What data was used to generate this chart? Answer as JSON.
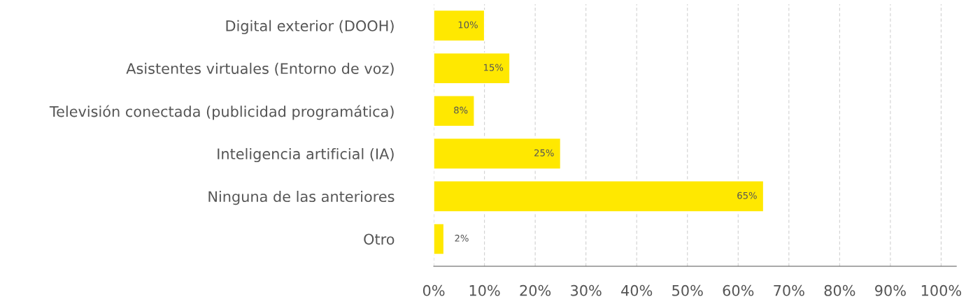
{
  "chart_data": {
    "type": "bar",
    "orientation": "horizontal",
    "categories": [
      "Digital exterior (DOOH)",
      "Asistentes virtuales (Entorno de voz)",
      "Televisión conectada (publicidad programática)",
      "Inteligencia artificial (IA)",
      "Ninguna de las anteriores",
      "Otro"
    ],
    "values": [
      10,
      15,
      8,
      25,
      65,
      2
    ],
    "value_labels": [
      "10%",
      "15%",
      "8%",
      "25%",
      "65%",
      "2%"
    ],
    "color": "#ffe800",
    "xlim": [
      0,
      103
    ],
    "xticks": [
      {
        "value": 0,
        "label": "0%"
      },
      {
        "value": 10,
        "label": "10%"
      },
      {
        "value": 20,
        "label": "20%"
      },
      {
        "value": 30,
        "label": "30%"
      },
      {
        "value": 40,
        "label": "40%"
      },
      {
        "value": 50,
        "label": "50%"
      },
      {
        "value": 60,
        "label": "60%"
      },
      {
        "value": 70,
        "label": "70%"
      },
      {
        "value": 80,
        "label": "80%"
      },
      {
        "value": 90,
        "label": "90%"
      },
      {
        "value": 100,
        "label": "100%"
      }
    ],
    "grid": "x"
  }
}
